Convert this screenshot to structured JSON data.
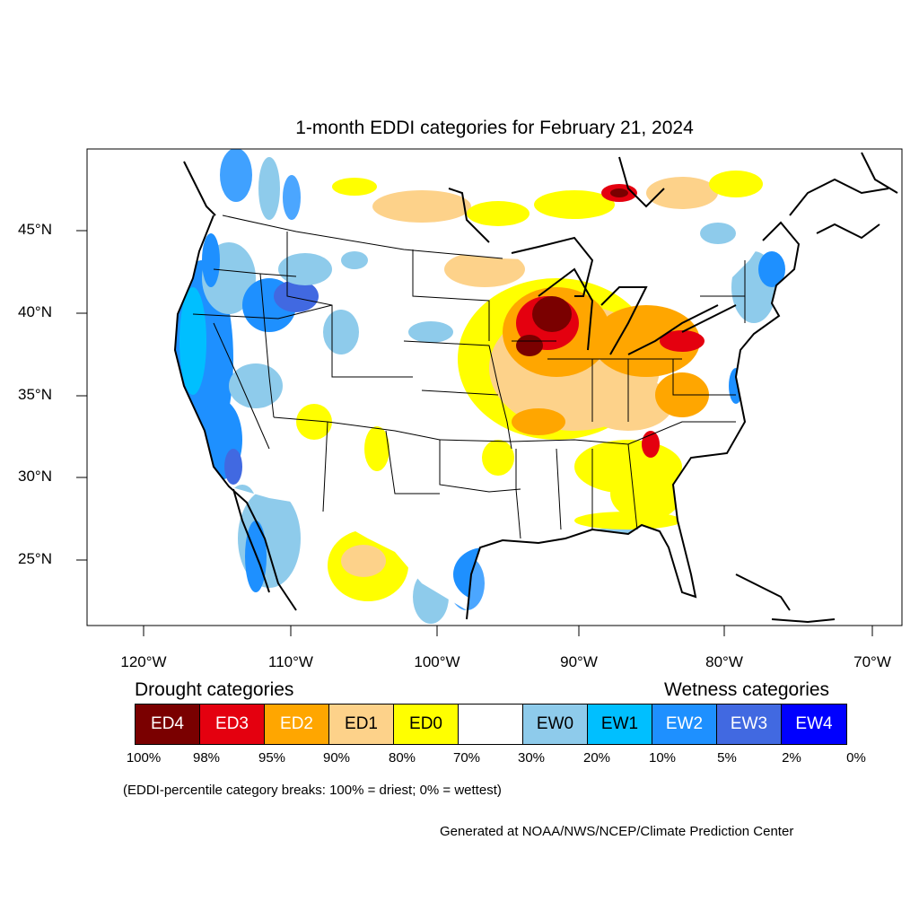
{
  "title": "1-month EDDI categories for February 21, 2024",
  "latitude_labels": [
    "45°N",
    "40°N",
    "35°N",
    "30°N",
    "25°N"
  ],
  "longitude_labels": [
    "120°W",
    "110°W",
    "100°W",
    "90°W",
    "80°W",
    "70°W"
  ],
  "legend": {
    "drought_heading": "Drought categories",
    "wetness_heading": "Wetness categories",
    "categories": [
      {
        "label": "ED4",
        "color": "#7a0000",
        "text_color": "#ffffff"
      },
      {
        "label": "ED3",
        "color": "#e4000f",
        "text_color": "#ffffff"
      },
      {
        "label": "ED2",
        "color": "#ffa600",
        "text_color": "#ffffff"
      },
      {
        "label": "ED1",
        "color": "#fdd28a",
        "text_color": "#000000"
      },
      {
        "label": "ED0",
        "color": "#ffff00",
        "text_color": "#000000"
      },
      {
        "label": "",
        "color": "#ffffff",
        "text_color": "#000000"
      },
      {
        "label": "EW0",
        "color": "#8ecbeb",
        "text_color": "#000000"
      },
      {
        "label": "EW1",
        "color": "#00bfff",
        "text_color": "#000000"
      },
      {
        "label": "EW2",
        "color": "#1e90ff",
        "text_color": "#ffffff"
      },
      {
        "label": "EW3",
        "color": "#4169e1",
        "text_color": "#ffffff"
      },
      {
        "label": "EW4",
        "color": "#0000ff",
        "text_color": "#ffffff"
      }
    ],
    "percentiles": [
      "100%",
      "98%",
      "95%",
      "90%",
      "80%",
      "70%",
      "30%",
      "20%",
      "10%",
      "5%",
      "2%",
      "0%"
    ]
  },
  "note": "(EDDI-percentile category breaks: 100% = driest; 0% = wettest)",
  "credit": "Generated at NOAA/NWS/NCEP/Climate Prediction Center"
}
